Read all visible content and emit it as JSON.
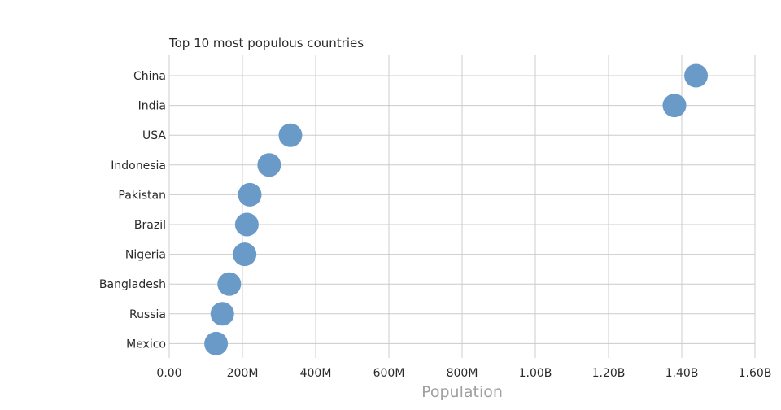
{
  "chart_data": {
    "type": "scatter",
    "title": "Top 10 most populous countries",
    "xlabel": "Population",
    "ylabel": "",
    "xlim": [
      0,
      1600000000
    ],
    "x_ticks": [
      {
        "value": 0,
        "label": "0.00"
      },
      {
        "value": 200000000,
        "label": "200M"
      },
      {
        "value": 400000000,
        "label": "400M"
      },
      {
        "value": 600000000,
        "label": "600M"
      },
      {
        "value": 800000000,
        "label": "800M"
      },
      {
        "value": 1000000000,
        "label": "1.00B"
      },
      {
        "value": 1200000000,
        "label": "1.20B"
      },
      {
        "value": 1400000000,
        "label": "1.40B"
      },
      {
        "value": 1600000000,
        "label": "1.60B"
      }
    ],
    "categories": [
      "China",
      "India",
      "USA",
      "Indonesia",
      "Pakistan",
      "Brazil",
      "Nigeria",
      "Bangladesh",
      "Russia",
      "Mexico"
    ],
    "values": [
      1439000000,
      1380000000,
      331000000,
      273000000,
      220000000,
      212000000,
      206000000,
      164000000,
      145000000,
      128000000
    ],
    "marker_color": "#6a9ac8",
    "grid": true,
    "legend": "none"
  }
}
